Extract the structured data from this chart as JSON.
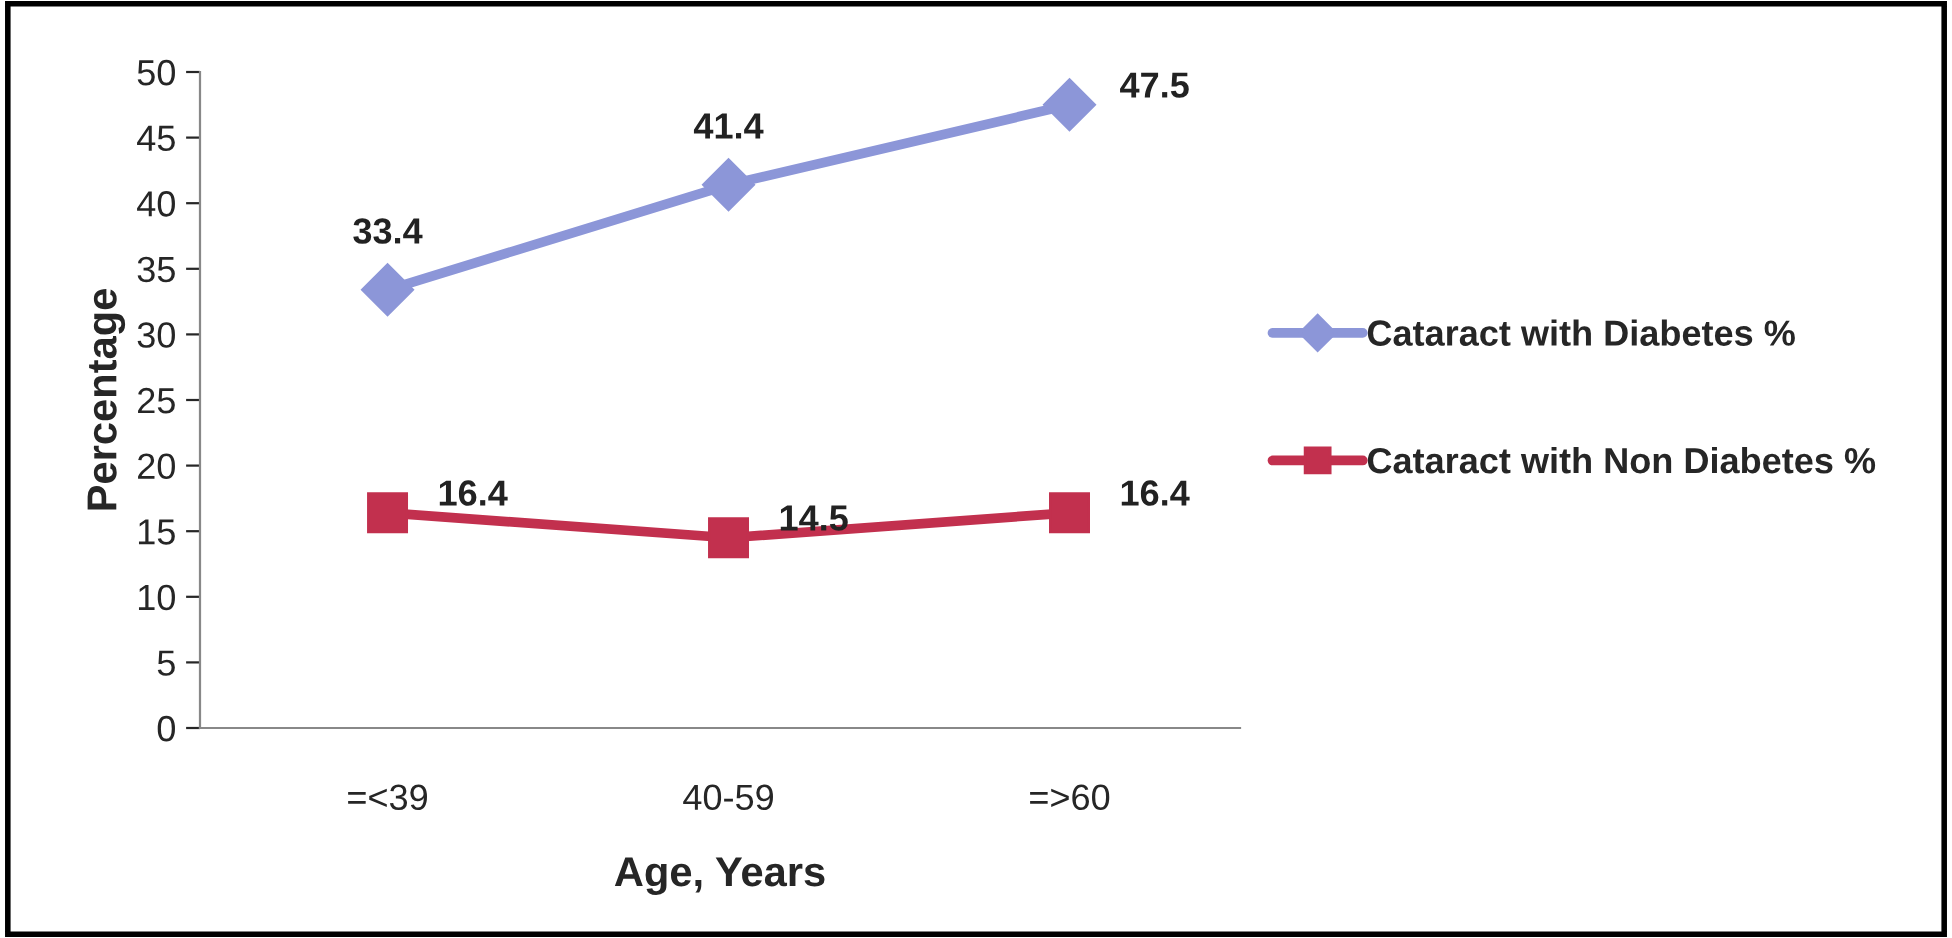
{
  "chart_data": {
    "type": "line",
    "xlabel": "Age, Years",
    "ylabel": "Percentage",
    "categories": [
      "=<39",
      "40-59",
      "=>60"
    ],
    "series": [
      {
        "name": "Cataract with Diabetes %",
        "color": "#8c96d8",
        "values": [
          33.4,
          41.4,
          47.5
        ],
        "marker": "diamond"
      },
      {
        "name": "Cataract with Non Diabetes %",
        "color": "#c2304e",
        "values": [
          16.4,
          14.5,
          16.4
        ],
        "marker": "square"
      }
    ],
    "ylim": [
      0,
      50
    ],
    "yticks": [
      0,
      5,
      10,
      15,
      20,
      25,
      30,
      35,
      40,
      45,
      50
    ],
    "grid": false,
    "legend": "right",
    "data_labels": true,
    "line_style": "solid"
  }
}
